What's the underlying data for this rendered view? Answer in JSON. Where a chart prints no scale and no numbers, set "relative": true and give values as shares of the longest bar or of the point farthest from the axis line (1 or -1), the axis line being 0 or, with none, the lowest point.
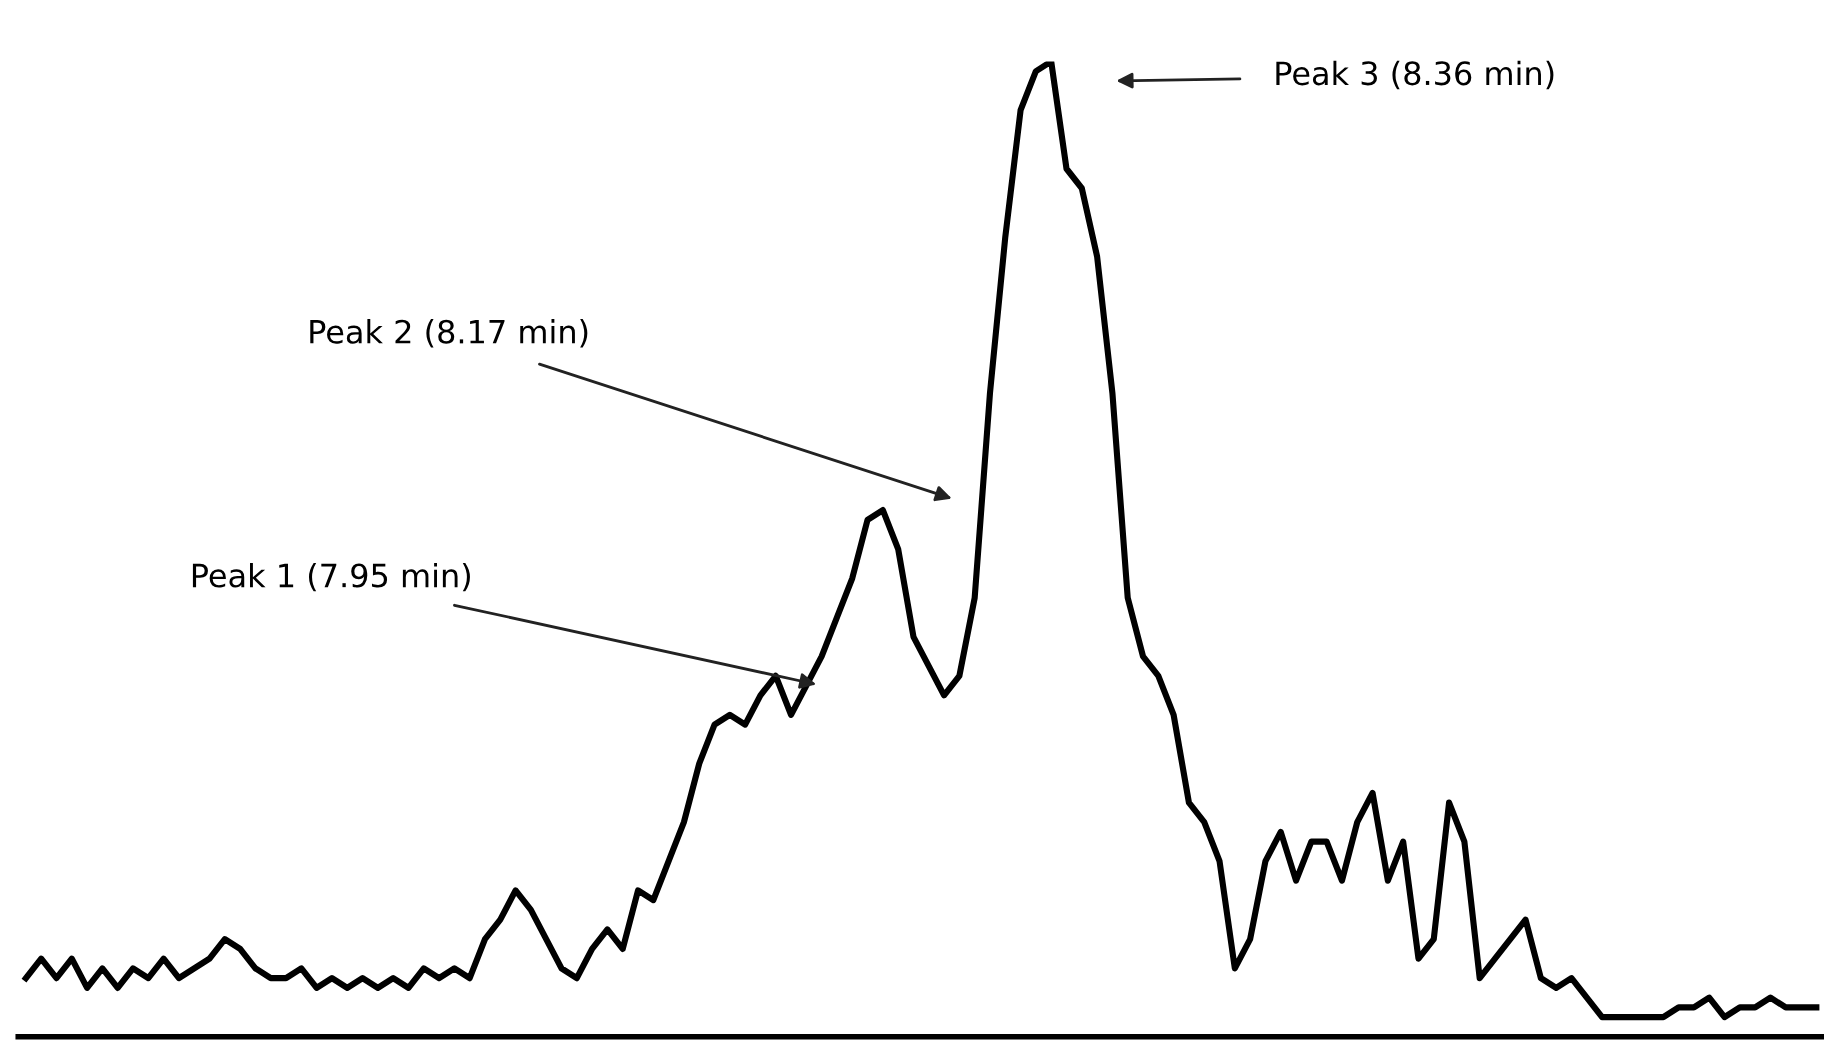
{
  "chart_data": {
    "type": "line",
    "relative": true,
    "color": "#000000",
    "marker": "none",
    "line_style": "solid",
    "categories": [
      null,
      null,
      null,
      null,
      null,
      null,
      null,
      null,
      null,
      null,
      null,
      null,
      null,
      null,
      null,
      null,
      null,
      null,
      null,
      null,
      null,
      null,
      null,
      null,
      null,
      null,
      null,
      null,
      null,
      null,
      null,
      null,
      null,
      null,
      null,
      null,
      null,
      null,
      null,
      null,
      null,
      null,
      null,
      null,
      null,
      null,
      null,
      null,
      null,
      null,
      null,
      null,
      null,
      null,
      null,
      null,
      null,
      null,
      null,
      null,
      null,
      null,
      null,
      null,
      null,
      null,
      null,
      null,
      null,
      null,
      null,
      null,
      null,
      null,
      null,
      null,
      null,
      null,
      null,
      null,
      null,
      null,
      null,
      null,
      null,
      null,
      null,
      null,
      null,
      null,
      null,
      null,
      null,
      null,
      null,
      null,
      null,
      null,
      null,
      null,
      null,
      null,
      null,
      null,
      null,
      null,
      null,
      null,
      null,
      null,
      null,
      null,
      null,
      null,
      null,
      null,
      null,
      null
    ],
    "values": [
      0.06,
      0.08,
      0.06,
      0.08,
      0.05,
      0.07,
      0.05,
      0.07,
      0.06,
      0.08,
      0.06,
      0.07,
      0.08,
      0.1,
      0.09,
      0.07,
      0.06,
      0.06,
      0.07,
      0.05,
      0.06,
      0.05,
      0.06,
      0.05,
      0.06,
      0.05,
      0.07,
      0.06,
      0.07,
      0.06,
      0.1,
      0.12,
      0.15,
      0.13,
      0.1,
      0.07,
      0.06,
      0.09,
      0.11,
      0.09,
      0.15,
      0.14,
      0.18,
      0.22,
      0.28,
      0.32,
      0.33,
      0.32,
      0.35,
      0.37,
      0.33,
      0.36,
      0.39,
      0.43,
      0.47,
      0.53,
      0.54,
      0.5,
      0.41,
      0.38,
      0.35,
      0.37,
      0.45,
      0.66,
      0.82,
      0.95,
      0.99,
      1.0,
      0.89,
      0.87,
      0.8,
      0.66,
      0.45,
      0.39,
      0.37,
      0.33,
      0.24,
      0.22,
      0.18,
      0.07,
      0.1,
      0.18,
      0.21,
      0.16,
      0.2,
      0.2,
      0.16,
      0.22,
      0.25,
      0.16,
      0.2,
      0.08,
      0.1,
      0.24,
      0.2,
      0.06,
      0.08,
      0.1,
      0.12,
      0.06,
      0.05,
      0.06,
      0.04,
      0.02,
      0.02,
      0.02,
      0.02,
      0.02,
      0.03,
      0.03,
      0.04,
      0.02,
      0.03,
      0.03,
      0.04,
      0.03,
      0.03,
      0.03
    ],
    "annotations": [
      "Peak 1 (7.95 min)",
      "Peak 2 (8.17 min)",
      "Peak 3 (8.36 min)"
    ]
  }
}
